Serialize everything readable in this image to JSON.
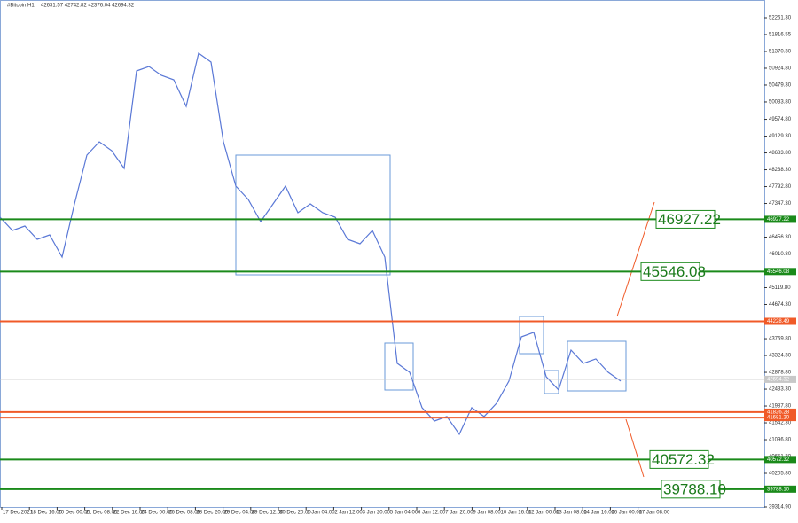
{
  "header": {
    "symbol": "#Bitcoin,H1",
    "ohlc": "42631.57 42742.82 42376.04 42694.32"
  },
  "chart_data": {
    "type": "line",
    "ylim": [
      39314.9,
      52730.3
    ],
    "yticks": [
      {
        "value": 52261.3,
        "label": "52261.30"
      },
      51816.55,
      {
        "value": 51370.3,
        "label": "51370.30"
      },
      {
        "value": 50924.8,
        "label": "50924.80"
      },
      {
        "value": 50479.3,
        "label": "50479.30"
      },
      {
        "value": 50033.8,
        "label": "50033.80"
      },
      {
        "value": 49574.8,
        "label": "49574.80"
      },
      {
        "value": 49129.3,
        "label": "49129.30"
      },
      {
        "value": 48683.8,
        "label": "48683.80"
      },
      {
        "value": 48238.3,
        "label": "48238.30"
      },
      {
        "value": 47792.8,
        "label": "47792.80"
      },
      {
        "value": 47347.3,
        "label": "47347.30"
      },
      {
        "value": 46456.3,
        "label": "46456.30"
      },
      {
        "value": 46010.8,
        "label": "46010.80"
      },
      {
        "value": 45119.8,
        "label": "45119.80"
      },
      {
        "value": 44674.3,
        "label": "44674.30"
      },
      {
        "value": 43769.8,
        "label": "43769.80"
      },
      {
        "value": 43324.3,
        "label": "43324.30"
      },
      {
        "value": 42878.8,
        "label": "42878.80"
      },
      {
        "value": 42433.3,
        "label": "42433.30"
      },
      {
        "value": 41987.8,
        "label": "41987.80"
      },
      {
        "value": 41542.3,
        "label": "41542.30"
      },
      {
        "value": 41096.8,
        "label": "41096.80"
      },
      {
        "value": 40651.3,
        "label": "40651.30"
      },
      {
        "value": 40205.8,
        "label": "40205.80"
      },
      {
        "value": 39314.9,
        "label": "39314.90"
      }
    ],
    "x_labels": [
      "17 Dec 2021",
      "18 Dec 16:00",
      "20 Dec 00:00",
      "21 Dec 08:00",
      "22 Dec 16:00",
      "24 Dec 00:00",
      "26 Dec 08:00",
      "28 Dec 20:00",
      "29 Dec 04:00",
      "29 Dec 12:00",
      "30 Dec 20:00",
      "1 Jan 04:00",
      "2 Jan 12:00",
      "3 Jan 20:00",
      "5 Jan 04:00",
      "6 Jan 12:00",
      "7 Jan 20:00",
      "9 Jan 08:00",
      "10 Jan 16:00",
      "12 Jan 00:00",
      "13 Jan 08:00",
      "14 Jan 16:00",
      "16 Jan 00:00",
      "17 Jan 08:00"
    ],
    "series": [
      {
        "color": "#5a78d6",
        "values": [
          46985,
          46633,
          46750,
          46398,
          46516,
          45929,
          47337,
          48627,
          48978,
          48744,
          48275,
          50854,
          50971,
          50737,
          50620,
          49916,
          51323,
          51089,
          48978,
          47806,
          47454,
          46868,
          47337,
          47806,
          47102,
          47337,
          47102,
          46985,
          46398,
          46281,
          46633,
          45929,
          43116,
          42881,
          41943,
          41591,
          41709,
          41240,
          41943,
          41709,
          42060,
          42647,
          43819,
          43937,
          42764,
          42412,
          43467,
          43116,
          43233,
          42881,
          42647
        ]
      }
    ],
    "levels": [
      {
        "value": 46927.22,
        "color": "#1a8a1a",
        "boxed": true
      },
      {
        "value": 45546.08,
        "color": "#1a8a1a",
        "boxed": true
      },
      {
        "value": 44228.49,
        "color": "#f05a28"
      },
      {
        "value": 42694.32,
        "color": "#c8c8c8"
      },
      {
        "value": 41826.28,
        "color": "#f05a28"
      },
      {
        "value": {
          "value": 41681.2,
          "label": "41681.20"
        },
        "color": "#f05a28"
      },
      {
        "value": 40572.32,
        "color": "#1a8a1a",
        "boxed": true
      },
      {
        "value": {
          "value": 39788.1,
          "label": "39788.10"
        },
        "color": "#1a8a1a",
        "boxed": true
      }
    ]
  }
}
